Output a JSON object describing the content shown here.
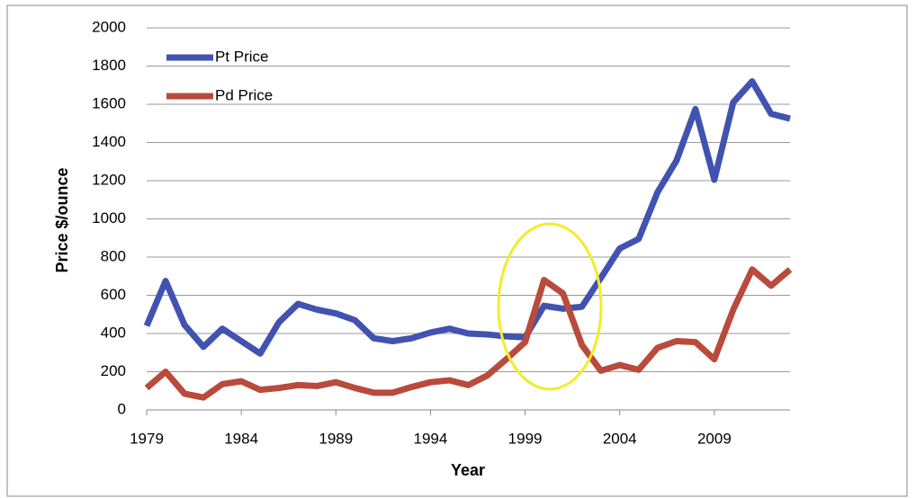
{
  "chart_data": {
    "type": "line",
    "x_label": "Year",
    "y_label": "Price $/ounce",
    "x": [
      1979,
      1980,
      1981,
      1982,
      1983,
      1984,
      1985,
      1986,
      1987,
      1988,
      1989,
      1990,
      1991,
      1992,
      1993,
      1994,
      1995,
      1996,
      1997,
      1998,
      1999,
      2000,
      2001,
      2002,
      2003,
      2004,
      2005,
      2006,
      2007,
      2008,
      2009,
      2010,
      2011,
      2012,
      2013
    ],
    "series": [
      {
        "name": "Pt Price",
        "color": "#4152b0",
        "values": [
          440,
          675,
          445,
          330,
          425,
          360,
          295,
          460,
          555,
          525,
          505,
          470,
          375,
          360,
          375,
          405,
          425,
          400,
          395,
          385,
          380,
          545,
          530,
          540,
          690,
          845,
          895,
          1140,
          1305,
          1575,
          1205,
          1610,
          1720,
          1550,
          1525
        ]
      },
      {
        "name": "Pd Price",
        "color": "#b94a3c",
        "values": [
          115,
          200,
          85,
          65,
          135,
          150,
          105,
          115,
          130,
          125,
          145,
          115,
          90,
          90,
          120,
          145,
          155,
          130,
          180,
          265,
          355,
          680,
          610,
          340,
          205,
          235,
          210,
          325,
          360,
          355,
          265,
          525,
          735,
          650,
          735
        ]
      }
    ],
    "xlim": [
      1979,
      2013
    ],
    "xticks": [
      1979,
      1984,
      1989,
      1994,
      1999,
      2004,
      2009
    ],
    "ylim": [
      0,
      2000
    ],
    "yticks": [
      0,
      200,
      400,
      600,
      800,
      1000,
      1200,
      1400,
      1600,
      1800,
      2000
    ],
    "grid": true,
    "legend": "top-left"
  }
}
